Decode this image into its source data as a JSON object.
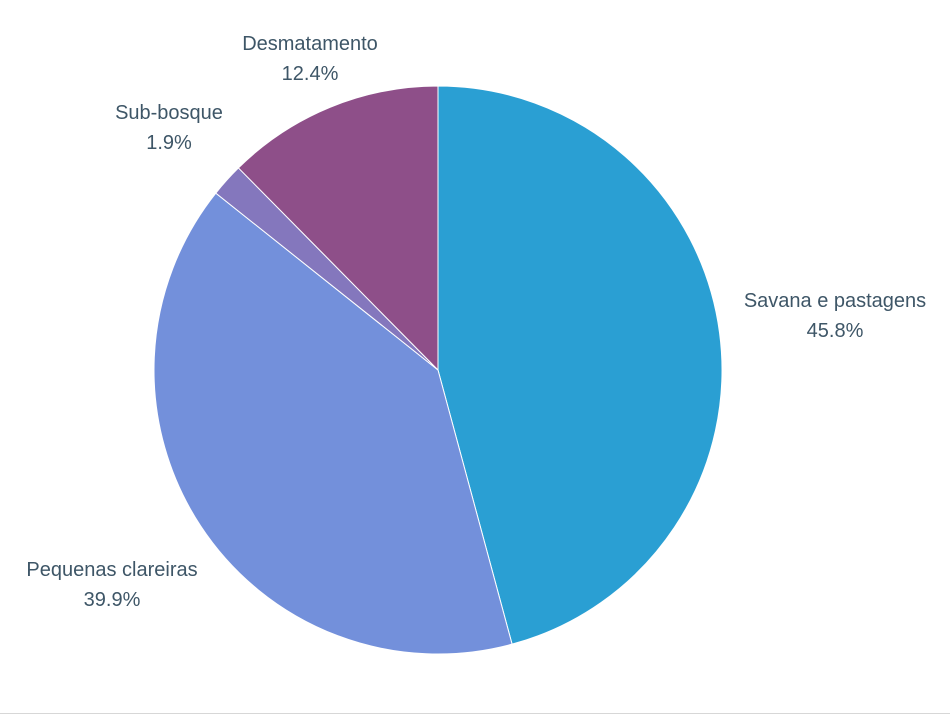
{
  "chart_data": {
    "type": "pie",
    "title": "",
    "slices": [
      {
        "label": "Savana e pastagens",
        "value": 45.8,
        "value_label": "45.8%",
        "color": "#2a9fd3"
      },
      {
        "label": "Pequenas clareiras",
        "value": 39.9,
        "value_label": "39.9%",
        "color": "#7390db"
      },
      {
        "label": "Sub-bosque",
        "value": 1.9,
        "value_label": "1.9%",
        "color": "#8477bd"
      },
      {
        "label": "Desmatamento",
        "value": 12.4,
        "value_label": "12.4%",
        "color": "#8e4f89"
      }
    ],
    "legend": "none",
    "label_color": "#3e5667"
  }
}
